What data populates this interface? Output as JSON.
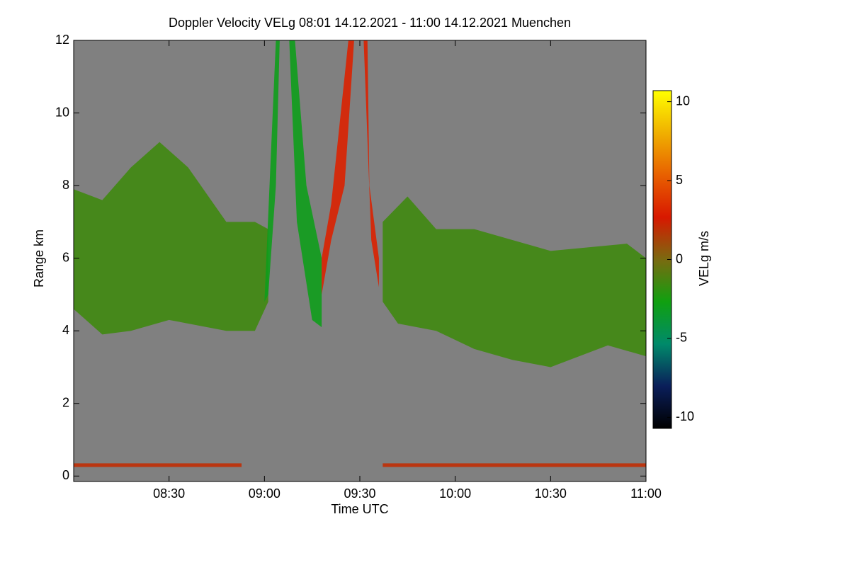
{
  "chart_data": {
    "type": "heatmap",
    "title": "Doppler Velocity VELg   08:01 14.12.2021 - 11:00 14.12.2021 Muenchen",
    "xlabel": "Time UTC",
    "ylabel": "Range km",
    "colorbar_label": "VELg m/s",
    "xlim": [
      8.0,
      11.0
    ],
    "ylim": [
      -0.15,
      12
    ],
    "xticks": [
      {
        "value": 8.5,
        "label": "08:30"
      },
      {
        "value": 9.0,
        "label": "09:00"
      },
      {
        "value": 9.5,
        "label": "09:30"
      },
      {
        "value": 10.0,
        "label": "10:00"
      },
      {
        "value": 10.5,
        "label": "10:30"
      },
      {
        "value": 11.0,
        "label": "11:00"
      }
    ],
    "yticks": [
      0,
      2,
      4,
      6,
      8,
      10,
      12
    ],
    "clim": [
      -10.7,
      10.7
    ],
    "cticks": [
      -10,
      -5,
      0,
      5,
      10
    ],
    "colormap": [
      "#000000",
      "#0a1e5a",
      "#008a6a",
      "#10a010",
      "#7a6a10",
      "#d81800",
      "#e86000",
      "#f0b000",
      "#ffff00"
    ],
    "background": "#808080",
    "regions": [
      {
        "value": -1.5,
        "x": [
          8.0,
          8.15,
          8.3,
          8.45,
          8.6,
          8.8,
          8.95,
          9.02,
          9.02,
          8.95,
          8.8,
          8.5,
          8.3,
          8.15,
          8.0
        ],
        "y": [
          7.9,
          7.6,
          8.5,
          9.2,
          8.5,
          7.0,
          7.0,
          6.8,
          4.8,
          4.0,
          4.0,
          4.3,
          4.0,
          3.9,
          4.6
        ]
      },
      {
        "value": -1.5,
        "x": [
          9.62,
          9.75,
          9.9,
          10.1,
          10.3,
          10.5,
          10.7,
          10.9,
          11.0,
          11.0,
          10.8,
          10.5,
          10.3,
          10.1,
          9.9,
          9.7,
          9.62
        ],
        "y": [
          7.0,
          7.7,
          6.8,
          6.8,
          6.5,
          6.2,
          6.3,
          6.4,
          6.0,
          3.3,
          3.6,
          3.0,
          3.2,
          3.5,
          4.0,
          4.2,
          4.8
        ]
      },
      {
        "value": -3,
        "x": [
          9.06,
          9.08,
          9.06,
          9.02,
          9.0
        ],
        "y": [
          12,
          12,
          8,
          5,
          4.8
        ]
      },
      {
        "value": -3,
        "x": [
          9.13,
          9.16,
          9.22,
          9.3,
          9.3,
          9.25,
          9.17
        ],
        "y": [
          12,
          12,
          8,
          6,
          4.1,
          4.3,
          7
        ]
      },
      {
        "value": 3,
        "x": [
          9.44,
          9.47,
          9.42,
          9.35,
          9.3,
          9.3,
          9.35
        ],
        "y": [
          12,
          12,
          8,
          6.5,
          5,
          6,
          7.5
        ]
      },
      {
        "value": 3,
        "x": [
          9.52,
          9.54,
          9.55,
          9.6,
          9.6,
          9.56
        ],
        "y": [
          12,
          12,
          8,
          6,
          5.2,
          6.5
        ]
      },
      {
        "value": 2,
        "x": [
          8.0,
          8.88,
          8.88,
          8.0
        ],
        "y": [
          0.25,
          0.25,
          0.35,
          0.35
        ]
      },
      {
        "value": 2,
        "x": [
          9.62,
          11.0,
          11.0,
          9.62
        ],
        "y": [
          0.25,
          0.25,
          0.35,
          0.35
        ]
      }
    ]
  }
}
